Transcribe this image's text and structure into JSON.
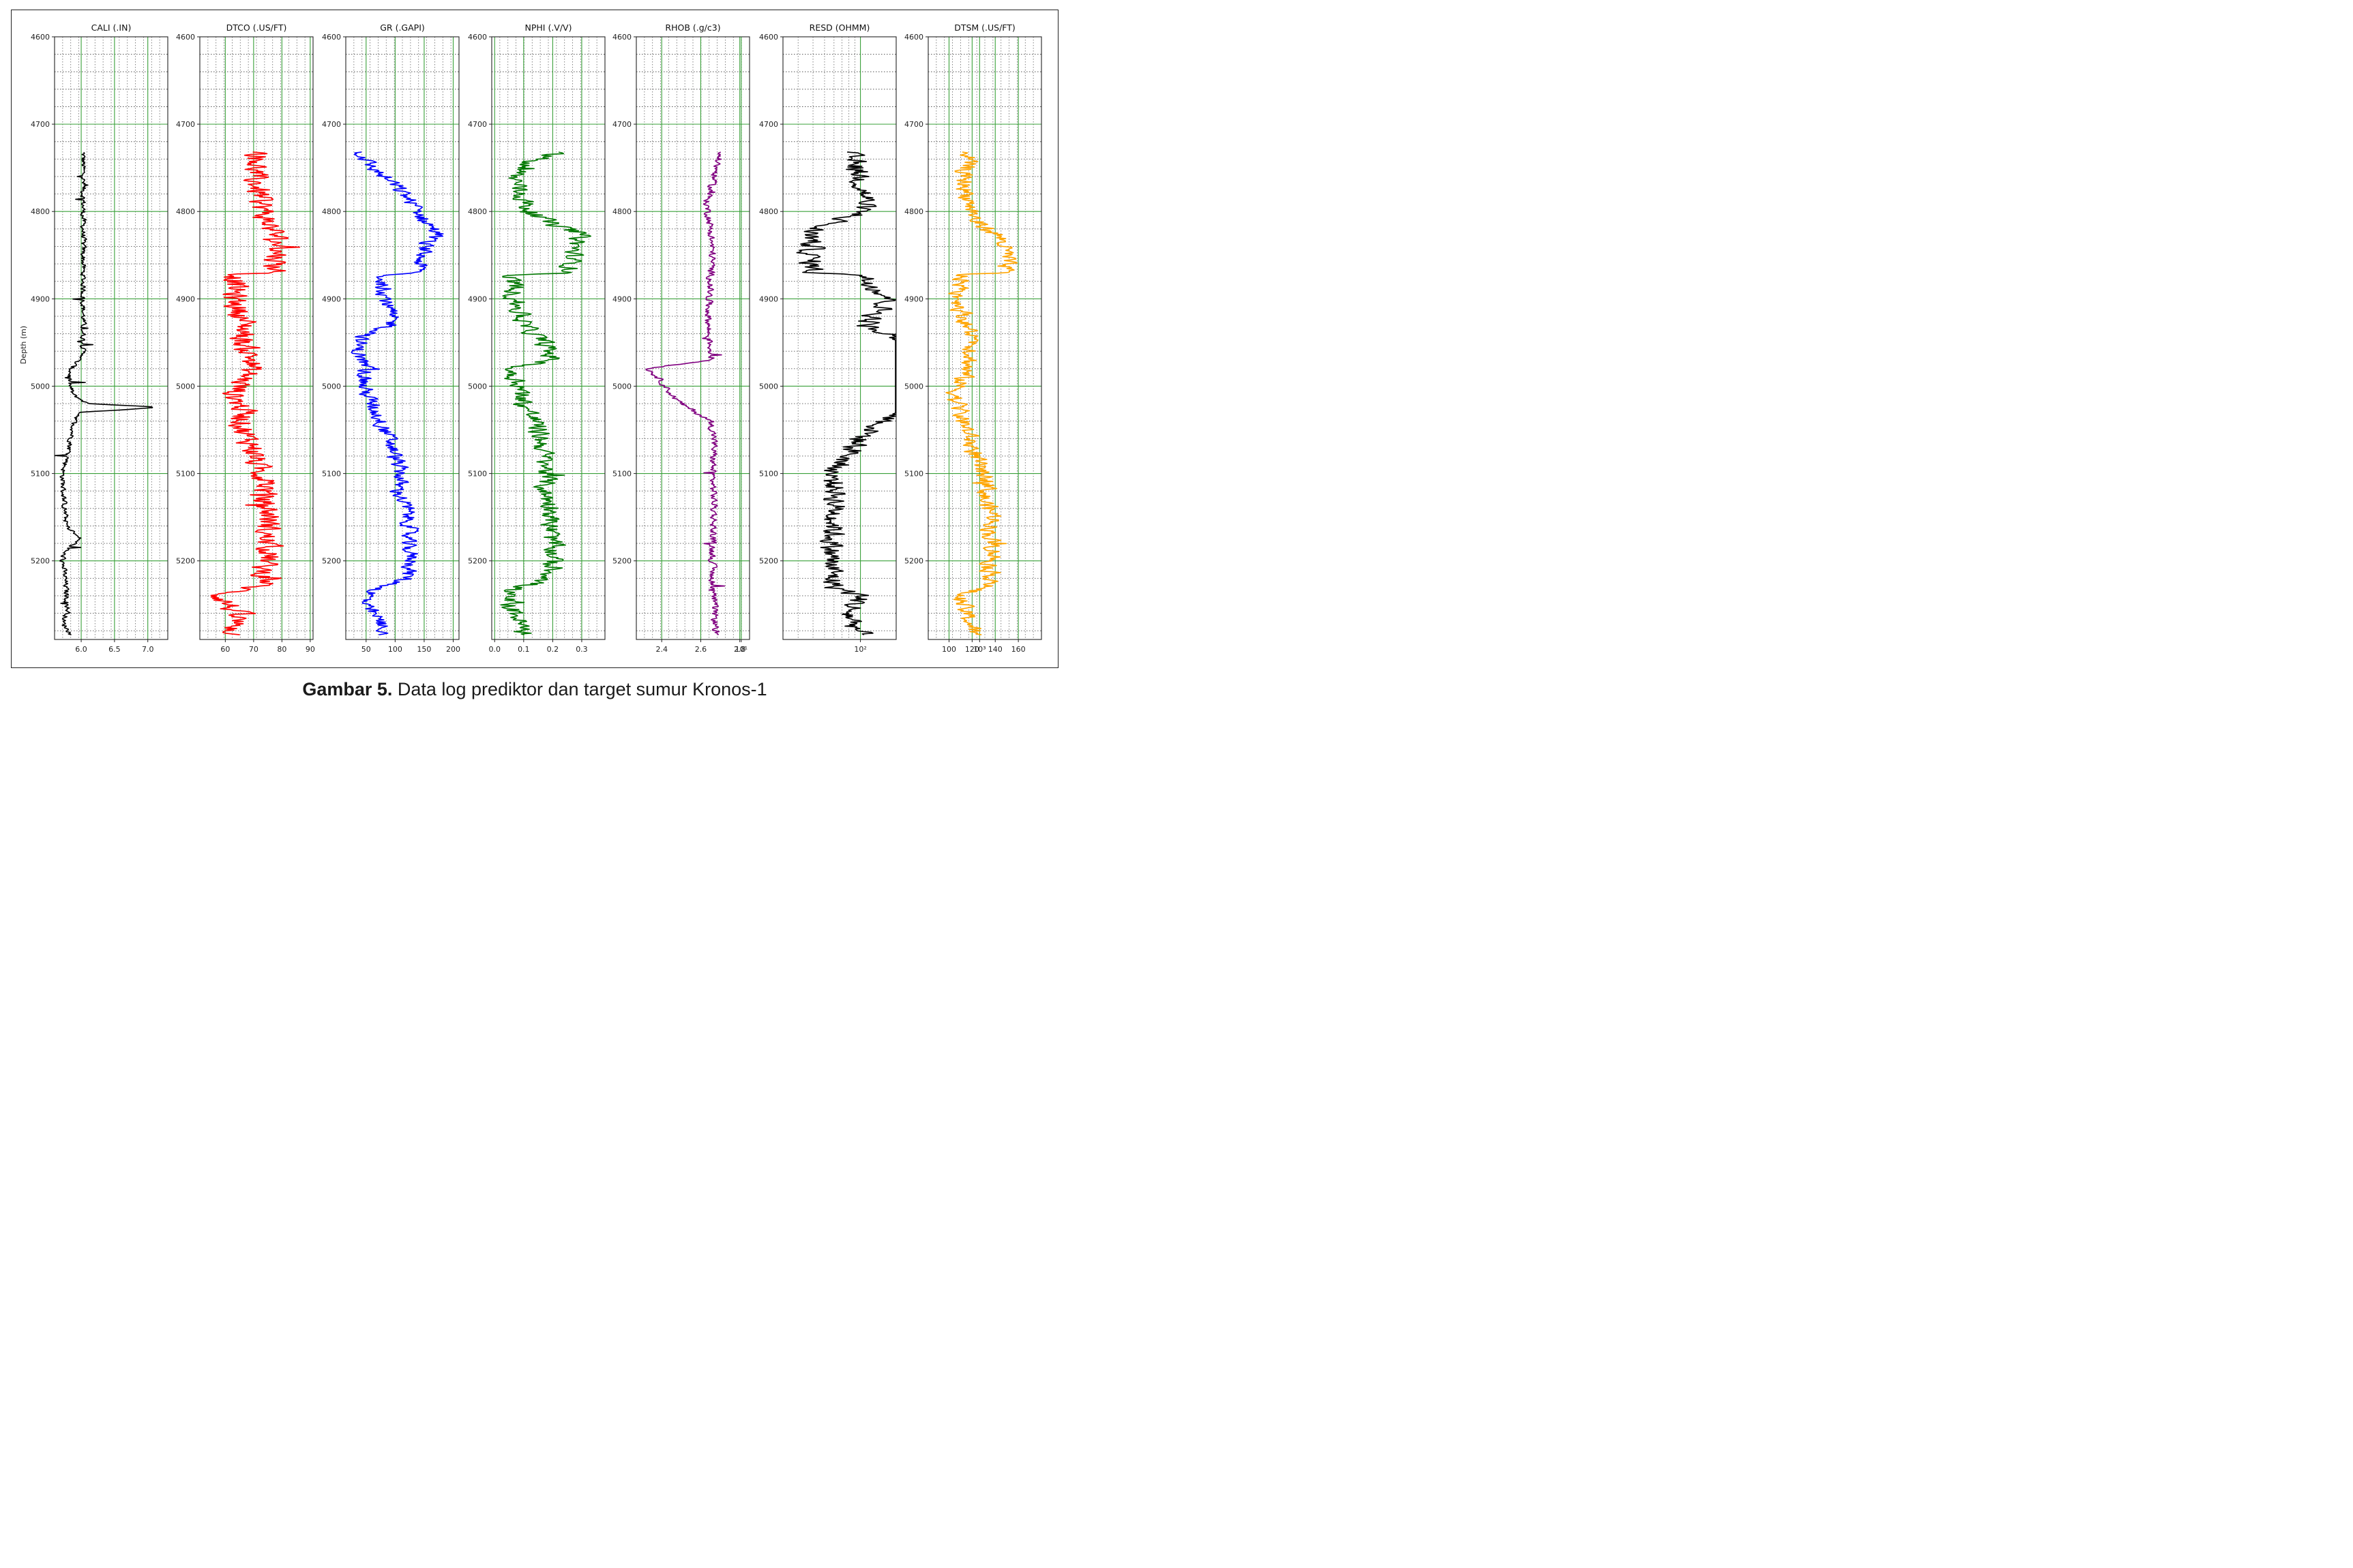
{
  "figure": {
    "caption_bold": "Gambar 5.",
    "caption_text": " Data log prediktor dan target sumur Kronos-1",
    "ylabel": "Depth (m)"
  },
  "chart_data": {
    "type": "line",
    "depth_range": [
      4600,
      5290
    ],
    "depth_ticks": [
      4600,
      4700,
      4800,
      4900,
      5000,
      5100,
      5200
    ],
    "depth_start": 4732,
    "grid": true,
    "tracks": [
      {
        "title": "CALI (.IN)",
        "color": "#000000",
        "scale": "linear",
        "xlim": [
          5.6,
          7.3
        ],
        "ticks": [
          6.0,
          6.5,
          7.0
        ],
        "tick_labels": [
          "6.0",
          "6.5",
          "7.0"
        ],
        "depth_points": [
          4732,
          4966,
          4970,
          4980,
          4990,
          5000,
          5010,
          5020,
          5024,
          5030,
          5040,
          5060,
          5080,
          5100,
          5120,
          5140,
          5160,
          5175,
          5190,
          5200,
          5220,
          5240,
          5260,
          5270,
          5285
        ],
        "values": [
          6.03,
          6.03,
          5.95,
          5.85,
          5.82,
          5.83,
          5.88,
          6.1,
          7.2,
          6.0,
          5.9,
          5.85,
          5.8,
          5.72,
          5.73,
          5.75,
          5.78,
          5.98,
          5.74,
          5.72,
          5.76,
          5.78,
          5.8,
          5.72,
          5.85
        ],
        "noise": 0.04
      },
      {
        "title": "DTCO (.US/FT)",
        "color": "#ff0000",
        "scale": "linear",
        "xlim": [
          51,
          91
        ],
        "ticks": [
          60,
          70,
          80,
          90
        ],
        "tick_labels": [
          "60",
          "70",
          "80",
          "90"
        ],
        "depth_points": [
          4732,
          4760,
          4790,
          4810,
          4820,
          4840,
          4860,
          4870,
          4872,
          4900,
          4930,
          4950,
          4970,
          4990,
          5010,
          5030,
          5050,
          5070,
          5090,
          5110,
          5130,
          5150,
          5170,
          5190,
          5210,
          5225,
          5240,
          5260,
          5285
        ],
        "values": [
          72,
          70,
          73,
          74,
          77,
          79,
          78,
          78,
          64,
          63,
          67,
          66,
          70,
          67,
          63,
          67,
          66,
          70,
          71,
          75,
          73,
          76,
          74,
          76,
          73,
          75,
          58,
          64,
          63
        ],
        "noise": 4.5
      },
      {
        "title": "GR (.GAPI)",
        "color": "#0000ff",
        "scale": "linear",
        "xlim": [
          15,
          210
        ],
        "ticks": [
          50,
          100,
          150,
          200
        ],
        "tick_labels": [
          "50",
          "100",
          "150",
          "200"
        ],
        "depth_points": [
          4732,
          4750,
          4770,
          4790,
          4810,
          4825,
          4835,
          4850,
          4870,
          4873,
          4900,
          4930,
          4945,
          4960,
          4980,
          5000,
          5020,
          5040,
          5060,
          5080,
          5100,
          5120,
          5140,
          5160,
          5180,
          5200,
          5220,
          5235,
          5250,
          5265,
          5285
        ],
        "values": [
          40,
          60,
          100,
          130,
          150,
          175,
          155,
          145,
          140,
          75,
          85,
          95,
          40,
          35,
          50,
          45,
          60,
          75,
          90,
          100,
          110,
          105,
          120,
          125,
          120,
          130,
          120,
          60,
          45,
          70,
          85
        ],
        "noise": 14
      },
      {
        "title": "NPHI (.V/V)",
        "color": "#007700",
        "scale": "linear",
        "xlim": [
          -0.01,
          0.38
        ],
        "ticks": [
          0.0,
          0.1,
          0.2,
          0.3
        ],
        "tick_labels": [
          "0.0",
          "0.1",
          "0.2",
          "0.3"
        ],
        "depth_points": [
          4732,
          4745,
          4760,
          4780,
          4800,
          4815,
          4825,
          4845,
          4870,
          4873,
          4900,
          4930,
          4950,
          4970,
          4980,
          5000,
          5020,
          5040,
          5060,
          5080,
          5100,
          5120,
          5140,
          5160,
          5180,
          5200,
          5220,
          5235,
          5250,
          5265,
          5285
        ],
        "values": [
          0.22,
          0.1,
          0.07,
          0.09,
          0.12,
          0.2,
          0.3,
          0.27,
          0.26,
          0.06,
          0.07,
          0.1,
          0.17,
          0.2,
          0.05,
          0.09,
          0.1,
          0.14,
          0.16,
          0.17,
          0.18,
          0.17,
          0.2,
          0.19,
          0.2,
          0.2,
          0.19,
          0.04,
          0.05,
          0.08,
          0.1
        ],
        "noise": 0.035
      },
      {
        "title": "RHOB (.g/c3)",
        "color": "#800080",
        "scale": "linear",
        "xlim": [
          2.27,
          2.85
        ],
        "ticks": [
          2.4,
          2.6,
          2.8
        ],
        "tick_labels": [
          "2.4",
          "2.6",
          "2.8"
        ],
        "depth_points": [
          4732,
          4760,
          4790,
          4820,
          4850,
          4880,
          4910,
          4940,
          4970,
          4980,
          4990,
          5000,
          5010,
          5020,
          5040,
          5060,
          5100,
          5140,
          5180,
          5220,
          5260,
          5285
        ],
        "values": [
          2.7,
          2.67,
          2.63,
          2.65,
          2.66,
          2.65,
          2.64,
          2.64,
          2.66,
          2.33,
          2.38,
          2.42,
          2.45,
          2.5,
          2.65,
          2.67,
          2.66,
          2.67,
          2.66,
          2.66,
          2.67,
          2.68
        ],
        "noise": 0.018
      },
      {
        "title": "RESD (OHMM)",
        "color": "#000000",
        "scale": "log",
        "xlim": [
          0.35,
          1.3
        ],
        "ticks": [
          1,
          10,
          100
        ],
        "tick_labels": [
          "10¹",
          "10²",
          "10³"
        ],
        "depth_points": [
          4732,
          4760,
          4790,
          4805,
          4820,
          4850,
          4870,
          4872,
          4900,
          4930,
          4950,
          4970,
          4980,
          5000,
          5020,
          5040,
          5060,
          5080,
          5100,
          5120,
          5160,
          5200,
          5230,
          5240,
          5260,
          5285
        ],
        "values": [
          0.9,
          1.0,
          1.05,
          0.95,
          0.6,
          0.58,
          0.6,
          1.0,
          1.25,
          1.05,
          1.4,
          1.6,
          1.75,
          1.8,
          1.5,
          1.2,
          1.0,
          0.9,
          0.75,
          0.8,
          0.78,
          0.75,
          0.78,
          1.0,
          0.9,
          1.0
        ],
        "noise": 0.1
      },
      {
        "title": "DTSM (.US/FT)",
        "color": "#ffa500",
        "scale": "linear",
        "xlim": [
          82,
          180
        ],
        "ticks": [
          100,
          120,
          140,
          160
        ],
        "tick_labels": [
          "100",
          "120",
          "140",
          "160"
        ],
        "depth_points": [
          4732,
          4760,
          4790,
          4810,
          4830,
          4850,
          4870,
          4872,
          4900,
          4930,
          4950,
          4970,
          4990,
          5010,
          5030,
          5050,
          5070,
          5090,
          5110,
          5130,
          5150,
          5170,
          5190,
          5210,
          5225,
          5240,
          5260,
          5285
        ],
        "values": [
          118,
          112,
          118,
          122,
          145,
          150,
          148,
          112,
          108,
          115,
          122,
          118,
          112,
          105,
          110,
          115,
          120,
          125,
          135,
          130,
          140,
          135,
          140,
          135,
          140,
          108,
          115,
          122
        ],
        "noise": 8
      }
    ]
  }
}
